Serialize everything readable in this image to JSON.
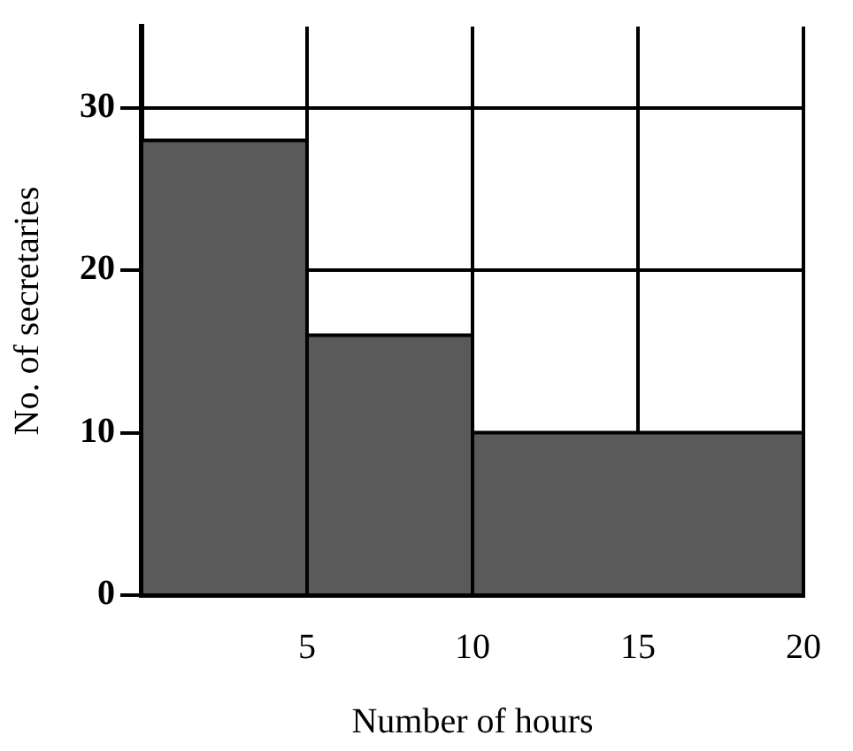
{
  "chart_data": {
    "type": "histogram",
    "xlabel": "Number of hours",
    "ylabel": "No. of secretaries",
    "bins": [
      0,
      5,
      10,
      20
    ],
    "values": [
      28,
      16,
      10
    ],
    "color": "#5a5a5a",
    "xlim": [
      0,
      20
    ],
    "xticks": [
      5,
      10,
      15,
      20
    ],
    "ylim": [
      0,
      35
    ],
    "yticks": [
      0,
      10,
      20,
      30
    ],
    "grid": true
  }
}
